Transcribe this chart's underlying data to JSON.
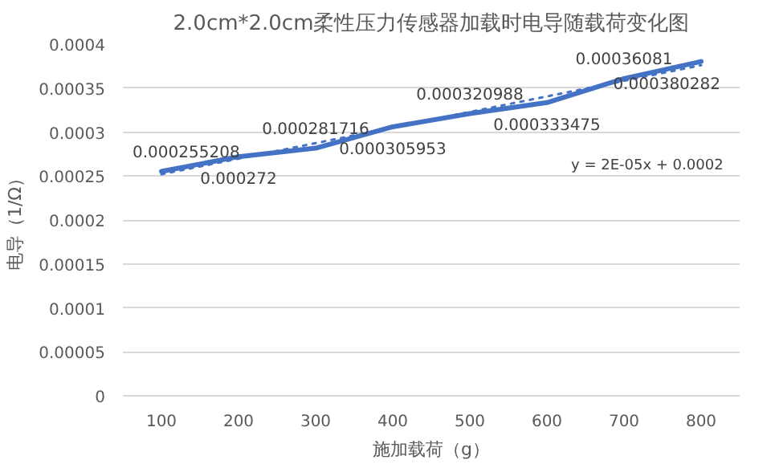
{
  "chart_data": {
    "type": "line",
    "title": "2.0cm*2.0cm柔性压力传感器加载时电导随载荷变化图",
    "xlabel": "施加载荷（g）",
    "ylabel": "电导（1/Ω）",
    "categories": [
      "100",
      "200",
      "300",
      "400",
      "500",
      "600",
      "700",
      "800"
    ],
    "series": [
      {
        "color": "#4472c4",
        "values": [
          0.000255208,
          0.000272,
          0.000281716,
          0.000305953,
          0.000320988,
          0.000333475,
          0.00036081,
          0.000380282
        ],
        "value_labels": [
          "0.000255208",
          "0.000272",
          "0.000281716",
          "0.000305953",
          "0.000320988",
          "0.000333475",
          "0.00036081",
          "0.000380282"
        ]
      },
      {
        "type": "line",
        "color": "#4472c4",
        "line_style": "dotted",
        "x": [
          "100",
          "800"
        ],
        "values": [
          0.000252,
          0.000376
        ]
      }
    ],
    "annotations": [
      "y = 2E-05x + 0.0002"
    ],
    "ylim": [
      0,
      0.0004
    ],
    "yticks": [
      0,
      {
        "value": 5e-05,
        "label": "0.00005"
      },
      {
        "value": 0.0001,
        "label": "0.0001"
      },
      {
        "value": 0.00015,
        "label": "0.00015"
      },
      {
        "value": 0.0002,
        "label": "0.0002"
      },
      {
        "value": 0.00025,
        "label": "0.00025"
      },
      {
        "value": 0.0003,
        "label": "0.0003"
      },
      {
        "value": 0.00035,
        "label": "0.00035"
      },
      {
        "value": 0.0004,
        "label": "0.0004"
      }
    ],
    "grid": "y",
    "marker": "none",
    "line_style": "solid"
  }
}
